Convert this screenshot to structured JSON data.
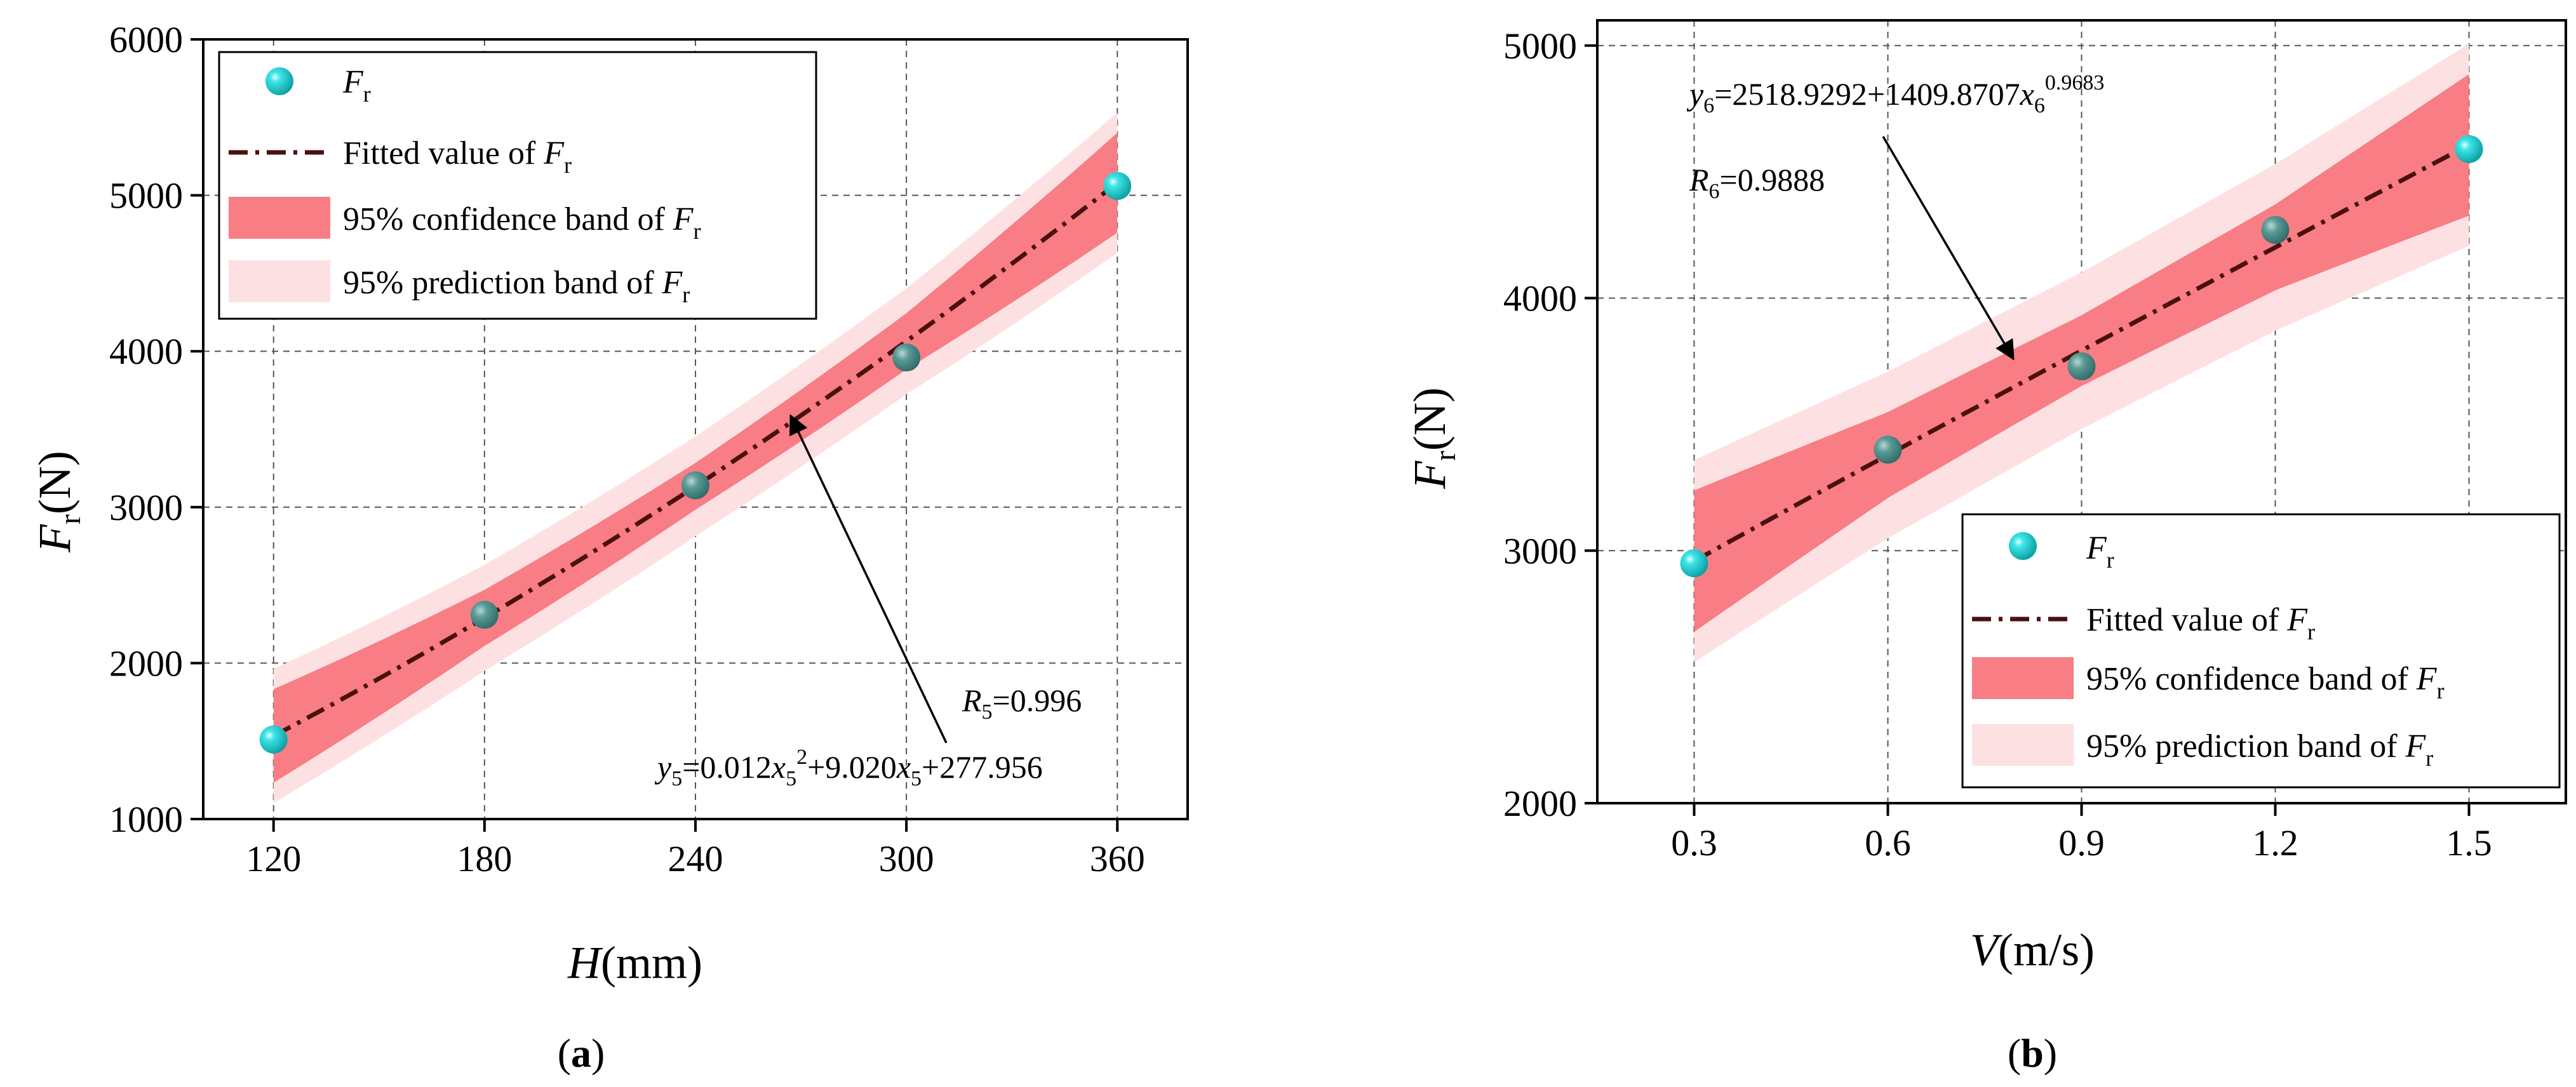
{
  "colors": {
    "point": "#1fd4d6",
    "point_edge": "#0aa7a9",
    "point_dark": "#4d8f8c",
    "fit_line": "#4a1010",
    "confidence": "#f87d84",
    "prediction": "#fde1e2",
    "grid": "#555555"
  },
  "chart_data": [
    {
      "id": "a",
      "type": "scatter",
      "panel_label": {
        "open": "(",
        "letter": "a",
        "close": ")"
      },
      "x": [
        120,
        180,
        240,
        300,
        360
      ],
      "y": [
        1510,
        2310,
        3140,
        3960,
        5060
      ],
      "fit": {
        "a": 0.012,
        "b": 9.02,
        "c": 277.956,
        "model": "quadratic"
      },
      "band_half_width": {
        "confidence": [
          300,
          180,
          150,
          180,
          320
        ],
        "prediction": [
          430,
          340,
          320,
          340,
          450
        ]
      },
      "xlim": [
        100,
        380
      ],
      "ylim": [
        1000,
        6000
      ],
      "xticks": [
        "120",
        "180",
        "240",
        "300",
        "360"
      ],
      "yticks": [
        "1000",
        "2000",
        "3000",
        "4000",
        "5000",
        "6000"
      ],
      "xlabel": {
        "var": "H",
        "unit": "(mm)"
      },
      "ylabel": {
        "var": "F",
        "sub": "r",
        "unit": "(N)"
      },
      "legend": {
        "position": "top-left",
        "items": [
          {
            "text": "F",
            "sub": "r"
          },
          {
            "text": "Fitted value of ",
            "var": "F",
            "sub": "r"
          },
          {
            "text": "95% confidence band of ",
            "var": "F",
            "sub": "r"
          },
          {
            "text": "95% prediction band of ",
            "var": "F",
            "sub": "r"
          }
        ]
      },
      "annotations": {
        "r_value": {
          "var": "R",
          "sub": "5",
          "text": "=0.996"
        },
        "equation": {
          "v": "y",
          "vsub": "5",
          "p1": "=0.012",
          "x1": "x",
          "x1sub": "5",
          "sup": "2",
          "p2": "+9.020",
          "x2": "x",
          "x2sub": "5",
          "p3": "+277.956"
        }
      }
    },
    {
      "id": "b",
      "type": "scatter",
      "panel_label": {
        "open": "(",
        "letter": "b",
        "close": ")"
      },
      "x": [
        0.3,
        0.6,
        0.9,
        1.2,
        1.5
      ],
      "y": [
        2950,
        3400,
        3730,
        4270,
        4590
      ],
      "fit": {
        "a": 2518.9292,
        "b": 1409.8707,
        "p": 0.9683,
        "model": "power"
      },
      "band_half_width": {
        "confidence": [
          280,
          170,
          140,
          170,
          280
        ],
        "prediction": [
          400,
          330,
          310,
          330,
          400
        ]
      },
      "xlim": [
        0.15,
        1.65
      ],
      "ylim": [
        2000,
        5100
      ],
      "xticks": [
        "0.3",
        "0.6",
        "0.9",
        "1.2",
        "1.5"
      ],
      "yticks": [
        "2000",
        "3000",
        "4000",
        "5000"
      ],
      "xlabel": {
        "var": "V",
        "unit": "(m/s)"
      },
      "ylabel": {
        "var": "F",
        "sub": "r",
        "unit": "(N)"
      },
      "legend": {
        "position": "bottom-right",
        "items": [
          {
            "text": "F",
            "sub": "r"
          },
          {
            "text": "Fitted value of ",
            "var": "F",
            "sub": "r"
          },
          {
            "text": "95% confidence band of ",
            "var": "F",
            "sub": "r"
          },
          {
            "text": "95% prediction band of ",
            "var": "F",
            "sub": "r"
          }
        ]
      },
      "annotations": {
        "equation": {
          "v": "y",
          "vsub": "6",
          "p1": "=2518.9292+1409.8707",
          "x1": "x",
          "x1sub": "6",
          "sup": "0.9683"
        },
        "r_value": {
          "var": "R",
          "sub": "6",
          "text": "=0.9888"
        }
      }
    }
  ]
}
